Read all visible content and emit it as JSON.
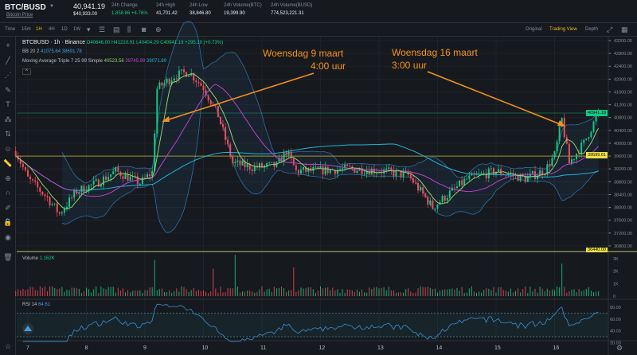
{
  "header": {
    "symbol": "BTC/BUSD",
    "subtitle": "Bitcoin Price",
    "last_price": "40,941.19",
    "last_price_usd": "$40,933.00",
    "stats": [
      {
        "label": "24h Change",
        "value": "1,858.86 +4.76%",
        "color": "#0ecb81"
      },
      {
        "label": "24h High",
        "value": "41,701.42"
      },
      {
        "label": "24h Low",
        "value": "38,846.80"
      },
      {
        "label": "24h Volume(BTC)",
        "value": "19,399.90"
      },
      {
        "label": "24h Volume(BUSD)",
        "value": "774,523,221.31"
      }
    ]
  },
  "toolbar": {
    "intervals": [
      "Time",
      "15m",
      "1H",
      "4H",
      "1D",
      "1W"
    ],
    "active": "1H",
    "views": [
      "Original",
      "Trading View",
      "Depth"
    ],
    "active_view": "Trading View"
  },
  "legend": {
    "title": "BTCBUSD · 1h · Binance",
    "o": "O40646.00",
    "h": "H41210.91",
    "l": "L40404.29",
    "c": "C40941.19",
    "chg": "+295.19 (+0.73%)",
    "bb_label": "BB 20 2",
    "bb_upper": "41075.64",
    "bb_lower": "38691.78",
    "ma_label": "Moving Average Triple 7 25 99 Simple",
    "ma7": "40523.56",
    "ma25": "39745.99",
    "ma99": "39071.89",
    "volume_label": "Volume",
    "volume_value": "1.162K",
    "rsi_label": "RSI 14",
    "rsi_value": "64.61"
  },
  "annotations": [
    {
      "line1": "Woensdag 9 maart",
      "line2": "4:00 uur"
    },
    {
      "line1": "Woensdag 16 maart",
      "line2": "3:00 uur"
    }
  ],
  "colors": {
    "up": "#0ecb81",
    "down": "#f6465d",
    "ma7": "#8fd16b",
    "ma25": "#c040c8",
    "ma99": "#1fb5d6",
    "bb": "#2d6fa6",
    "annotation": "#f7931a",
    "highlight": "#f0e040"
  },
  "chart_data": {
    "type": "candlestick",
    "interval": "1h",
    "x_ticks": [
      "7",
      "8",
      "9",
      "10",
      "11",
      "12",
      "13",
      "14",
      "15",
      "16"
    ],
    "y_ticks": [
      43200,
      42800,
      42400,
      42000,
      41600,
      41200,
      40800,
      40400,
      40000,
      39600,
      39200,
      38800,
      38400,
      38000,
      37600,
      37200,
      36800
    ],
    "ylim": [
      36440,
      43400
    ],
    "price_labels": {
      "last": "40941.19",
      "line": "39599.61",
      "bottom": "36440.00"
    },
    "close_keyframes": [
      {
        "day": 6,
        "hour": 19,
        "close": 39750
      },
      {
        "day": 7,
        "hour": 0,
        "close": 38900
      },
      {
        "day": 7,
        "hour": 8,
        "close": 38300
      },
      {
        "day": 7,
        "hour": 13,
        "close": 37800
      },
      {
        "day": 7,
        "hour": 20,
        "close": 38500
      },
      {
        "day": 8,
        "hour": 4,
        "close": 38750
      },
      {
        "day": 8,
        "hour": 12,
        "close": 39130
      },
      {
        "day": 8,
        "hour": 22,
        "close": 38760
      },
      {
        "day": 9,
        "hour": 3,
        "close": 39100
      },
      {
        "day": 9,
        "hour": 5,
        "close": 41700
      },
      {
        "day": 9,
        "hour": 12,
        "close": 42100
      },
      {
        "day": 9,
        "hour": 18,
        "close": 42230
      },
      {
        "day": 10,
        "hour": 0,
        "close": 41740
      },
      {
        "day": 10,
        "hour": 6,
        "close": 40870
      },
      {
        "day": 10,
        "hour": 12,
        "close": 39380
      },
      {
        "day": 10,
        "hour": 20,
        "close": 39250
      },
      {
        "day": 11,
        "hour": 6,
        "close": 39300
      },
      {
        "day": 11,
        "hour": 10,
        "close": 39750
      },
      {
        "day": 11,
        "hour": 14,
        "close": 39130
      },
      {
        "day": 12,
        "hour": 0,
        "close": 39150
      },
      {
        "day": 12,
        "hour": 12,
        "close": 39200
      },
      {
        "day": 13,
        "hour": 0,
        "close": 39150
      },
      {
        "day": 13,
        "hour": 12,
        "close": 39000
      },
      {
        "day": 13,
        "hour": 22,
        "close": 38000
      },
      {
        "day": 14,
        "hour": 2,
        "close": 38260
      },
      {
        "day": 14,
        "hour": 12,
        "close": 38880
      },
      {
        "day": 15,
        "hour": 0,
        "close": 39130
      },
      {
        "day": 15,
        "hour": 12,
        "close": 38900
      },
      {
        "day": 15,
        "hour": 20,
        "close": 39150
      },
      {
        "day": 16,
        "hour": 0,
        "close": 39630
      },
      {
        "day": 16,
        "hour": 3,
        "close": 40740
      },
      {
        "day": 16,
        "hour": 6,
        "close": 39380
      },
      {
        "day": 16,
        "hour": 12,
        "close": 40000
      },
      {
        "day": 16,
        "hour": 18,
        "close": 40941
      }
    ],
    "volume_ticks": [
      "3K",
      "2K",
      "1K",
      "0"
    ],
    "volume_spikes": [
      {
        "day": 9,
        "hour": 4,
        "value": 2900
      },
      {
        "day": 10,
        "hour": 4,
        "value": 2200
      },
      {
        "day": 10,
        "hour": 13,
        "value": 3300
      },
      {
        "day": 11,
        "hour": 13,
        "value": 2300
      },
      {
        "day": 16,
        "hour": 3,
        "value": 2600
      }
    ],
    "rsi_ticks": [
      "80.00",
      "60.00",
      "40.00",
      "20.00"
    ],
    "rsi_bands": [
      70,
      30
    ]
  }
}
